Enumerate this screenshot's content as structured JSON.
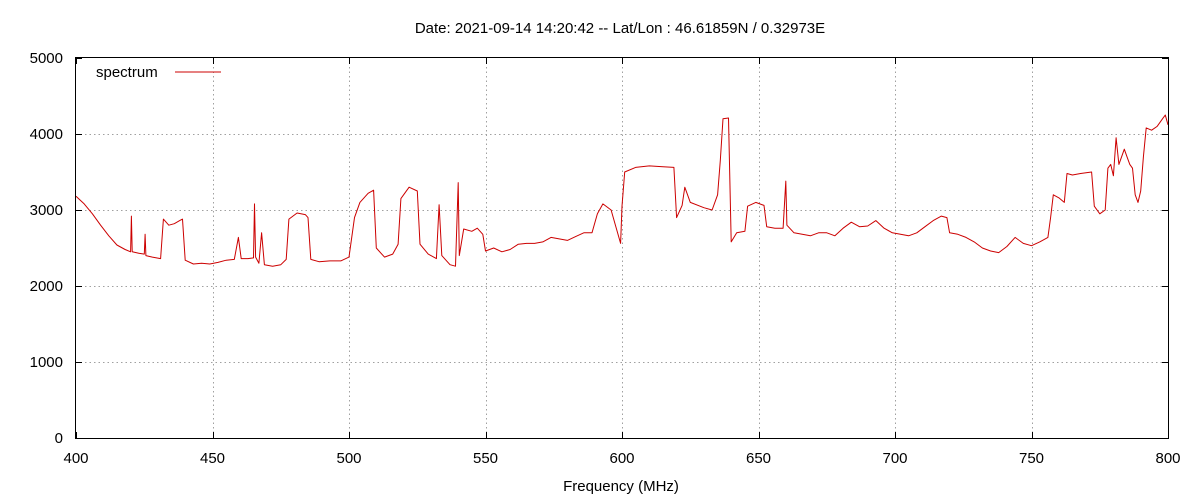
{
  "chart_data": {
    "type": "line",
    "title": "Date: 2021-09-14 14:20:42  --  Lat/Lon : 46.61859N / 0.32973E",
    "xlabel": "Frequency (MHz)",
    "ylabel": "",
    "xlim": [
      400,
      800
    ],
    "ylim": [
      0,
      5000
    ],
    "x_ticks": [
      400,
      450,
      500,
      550,
      600,
      650,
      700,
      750,
      800
    ],
    "y_ticks": [
      0,
      1000,
      2000,
      3000,
      4000,
      5000
    ],
    "grid": true,
    "legend": "top-left",
    "series": [
      {
        "name": "spectrum",
        "color": "#cc0000",
        "points": [
          [
            400,
            3180
          ],
          [
            403,
            3080
          ],
          [
            406,
            2950
          ],
          [
            409,
            2800
          ],
          [
            412,
            2660
          ],
          [
            415,
            2540
          ],
          [
            418,
            2480
          ],
          [
            420,
            2450
          ],
          [
            420.3,
            2920
          ],
          [
            420.6,
            2450
          ],
          [
            423,
            2430
          ],
          [
            425,
            2420
          ],
          [
            425.3,
            2680
          ],
          [
            425.6,
            2400
          ],
          [
            428,
            2380
          ],
          [
            431,
            2360
          ],
          [
            432,
            2880
          ],
          [
            434,
            2800
          ],
          [
            436,
            2820
          ],
          [
            438,
            2860
          ],
          [
            439,
            2880
          ],
          [
            440,
            2340
          ],
          [
            443,
            2290
          ],
          [
            446,
            2300
          ],
          [
            449,
            2290
          ],
          [
            452,
            2310
          ],
          [
            455,
            2340
          ],
          [
            458,
            2350
          ],
          [
            459.5,
            2640
          ],
          [
            460.5,
            2360
          ],
          [
            463,
            2360
          ],
          [
            465,
            2370
          ],
          [
            465.4,
            3080
          ],
          [
            465.8,
            2380
          ],
          [
            467,
            2300
          ],
          [
            468,
            2700
          ],
          [
            469,
            2280
          ],
          [
            472,
            2260
          ],
          [
            475,
            2280
          ],
          [
            477,
            2350
          ],
          [
            478,
            2880
          ],
          [
            481,
            2960
          ],
          [
            484,
            2940
          ],
          [
            485,
            2900
          ],
          [
            486,
            2350
          ],
          [
            489,
            2320
          ],
          [
            493,
            2330
          ],
          [
            497,
            2330
          ],
          [
            500,
            2380
          ],
          [
            502,
            2900
          ],
          [
            504,
            3100
          ],
          [
            507,
            3220
          ],
          [
            509,
            3260
          ],
          [
            510,
            2500
          ],
          [
            513,
            2380
          ],
          [
            516,
            2420
          ],
          [
            518,
            2550
          ],
          [
            519,
            3150
          ],
          [
            522,
            3300
          ],
          [
            525,
            3250
          ],
          [
            526,
            2550
          ],
          [
            529,
            2420
          ],
          [
            532,
            2360
          ],
          [
            533,
            3070
          ],
          [
            534,
            2400
          ],
          [
            537,
            2280
          ],
          [
            539,
            2260
          ],
          [
            540,
            3360
          ],
          [
            540.4,
            2400
          ],
          [
            542,
            2750
          ],
          [
            545,
            2720
          ],
          [
            547,
            2760
          ],
          [
            549,
            2680
          ],
          [
            550,
            2460
          ],
          [
            553,
            2500
          ],
          [
            556,
            2450
          ],
          [
            559,
            2480
          ],
          [
            562,
            2550
          ],
          [
            565,
            2560
          ],
          [
            568,
            2560
          ],
          [
            571,
            2580
          ],
          [
            574,
            2640
          ],
          [
            577,
            2620
          ],
          [
            580,
            2600
          ],
          [
            583,
            2650
          ],
          [
            586,
            2700
          ],
          [
            589,
            2700
          ],
          [
            591,
            2950
          ],
          [
            593,
            3080
          ],
          [
            596,
            3000
          ],
          [
            598,
            2750
          ],
          [
            599.5,
            2560
          ],
          [
            600,
            3050
          ],
          [
            601,
            3500
          ],
          [
            605,
            3560
          ],
          [
            610,
            3580
          ],
          [
            615,
            3570
          ],
          [
            619,
            3560
          ],
          [
            620,
            2900
          ],
          [
            622,
            3060
          ],
          [
            623,
            3300
          ],
          [
            625,
            3100
          ],
          [
            630,
            3030
          ],
          [
            633,
            3000
          ],
          [
            635,
            3200
          ],
          [
            636,
            3650
          ],
          [
            637,
            4200
          ],
          [
            639,
            4210
          ],
          [
            640,
            2580
          ],
          [
            642,
            2700
          ],
          [
            645,
            2720
          ],
          [
            646,
            3050
          ],
          [
            649,
            3100
          ],
          [
            652,
            3060
          ],
          [
            653,
            2780
          ],
          [
            656,
            2760
          ],
          [
            659,
            2760
          ],
          [
            660,
            3380
          ],
          [
            660.4,
            2800
          ],
          [
            663,
            2700
          ],
          [
            666,
            2680
          ],
          [
            669,
            2660
          ],
          [
            672,
            2700
          ],
          [
            675,
            2700
          ],
          [
            678,
            2660
          ],
          [
            681,
            2760
          ],
          [
            684,
            2840
          ],
          [
            687,
            2780
          ],
          [
            690,
            2790
          ],
          [
            693,
            2860
          ],
          [
            696,
            2760
          ],
          [
            699,
            2700
          ],
          [
            702,
            2680
          ],
          [
            705,
            2660
          ],
          [
            708,
            2700
          ],
          [
            711,
            2780
          ],
          [
            714,
            2860
          ],
          [
            717,
            2920
          ],
          [
            719,
            2900
          ],
          [
            720,
            2700
          ],
          [
            723,
            2680
          ],
          [
            726,
            2640
          ],
          [
            729,
            2580
          ],
          [
            732,
            2500
          ],
          [
            735,
            2460
          ],
          [
            738,
            2440
          ],
          [
            741,
            2520
          ],
          [
            744,
            2640
          ],
          [
            747,
            2560
          ],
          [
            750,
            2530
          ],
          [
            753,
            2580
          ],
          [
            756,
            2640
          ],
          [
            757,
            2900
          ],
          [
            758,
            3200
          ],
          [
            760,
            3160
          ],
          [
            762,
            3100
          ],
          [
            763,
            3480
          ],
          [
            765,
            3460
          ],
          [
            768,
            3480
          ],
          [
            772,
            3500
          ],
          [
            773,
            3050
          ],
          [
            775,
            2950
          ],
          [
            777,
            3000
          ],
          [
            778,
            3550
          ],
          [
            779,
            3600
          ],
          [
            780,
            3450
          ],
          [
            781,
            3950
          ],
          [
            782,
            3600
          ],
          [
            784,
            3800
          ],
          [
            785,
            3700
          ],
          [
            786,
            3600
          ],
          [
            787,
            3550
          ],
          [
            788,
            3200
          ],
          [
            789,
            3100
          ],
          [
            790,
            3250
          ],
          [
            791,
            3700
          ],
          [
            792,
            4080
          ],
          [
            794,
            4050
          ],
          [
            796,
            4100
          ],
          [
            798,
            4200
          ],
          [
            799,
            4250
          ],
          [
            800,
            4120
          ]
        ]
      }
    ]
  }
}
